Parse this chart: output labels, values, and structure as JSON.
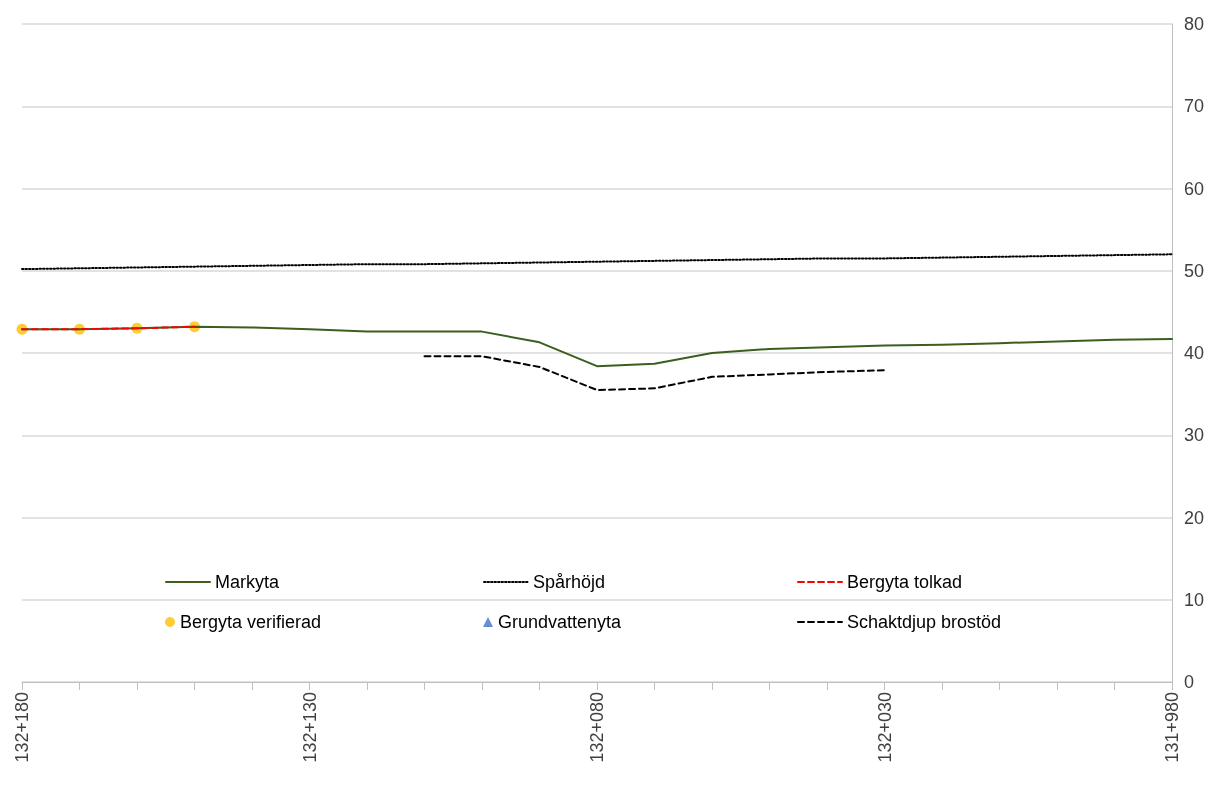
{
  "chart_data": {
    "type": "line",
    "categories": [
      "132+180",
      null,
      null,
      null,
      null,
      "132+130",
      null,
      null,
      null,
      null,
      "132+080",
      null,
      null,
      null,
      null,
      "132+030",
      null,
      null,
      null,
      null,
      "131+980"
    ],
    "series": [
      {
        "name": "Markyta",
        "color": "#3a5f1e",
        "line_style": "solid",
        "marker": "none",
        "values": [
          42.9,
          42.9,
          43.0,
          43.2,
          43.1,
          42.9,
          42.6,
          42.6,
          42.6,
          41.3,
          38.4,
          38.7,
          40.0,
          40.5,
          40.7,
          40.9,
          41.0,
          41.2,
          41.4,
          41.6,
          41.7
        ]
      },
      {
        "name": "Spårhöjd",
        "color": "#000000",
        "line_style": "dotted",
        "marker": "none",
        "values": [
          50.2,
          50.3,
          50.4,
          50.5,
          50.6,
          50.7,
          50.8,
          50.8,
          50.9,
          51.0,
          51.1,
          51.2,
          51.3,
          51.4,
          51.5,
          51.5,
          51.6,
          51.7,
          51.8,
          51.9,
          52.0
        ]
      },
      {
        "name": "Bergyta tolkad",
        "color": "#ff0000",
        "line_style": "dashed",
        "marker": "none",
        "values": [
          42.9,
          42.9,
          43.0,
          43.2,
          null,
          null,
          null,
          null,
          null,
          null,
          null,
          null,
          null,
          null,
          null,
          null,
          null,
          null,
          null,
          null,
          null
        ]
      },
      {
        "name": "Bergyta verifierad",
        "type": "scatter",
        "color": "#ffc000",
        "marker": "circle",
        "values": [
          42.9,
          42.9,
          43.0,
          43.2,
          null,
          null,
          null,
          null,
          null,
          null,
          null,
          null,
          null,
          null,
          null,
          null,
          null,
          null,
          null,
          null,
          null
        ]
      },
      {
        "name": "Grundvattenyta",
        "type": "scatter",
        "color": "#4472c4",
        "marker": "triangle",
        "values": [
          null,
          null,
          null,
          null,
          null,
          null,
          null,
          null,
          null,
          null,
          null,
          null,
          null,
          null,
          null,
          null,
          null,
          null,
          null,
          null,
          null
        ]
      },
      {
        "name": "Schaktdjup brostöd",
        "color": "#000000",
        "line_style": "dashed",
        "marker": "none",
        "values": [
          null,
          null,
          null,
          null,
          null,
          null,
          null,
          39.6,
          39.6,
          38.3,
          35.5,
          35.7,
          37.1,
          37.4,
          37.7,
          37.9,
          null,
          null,
          null,
          null,
          null
        ]
      }
    ],
    "ylim": [
      0,
      80
    ],
    "yticks": [
      0,
      10,
      20,
      30,
      40,
      50,
      60,
      70,
      80
    ],
    "grid": "y",
    "legend": "bottom"
  }
}
